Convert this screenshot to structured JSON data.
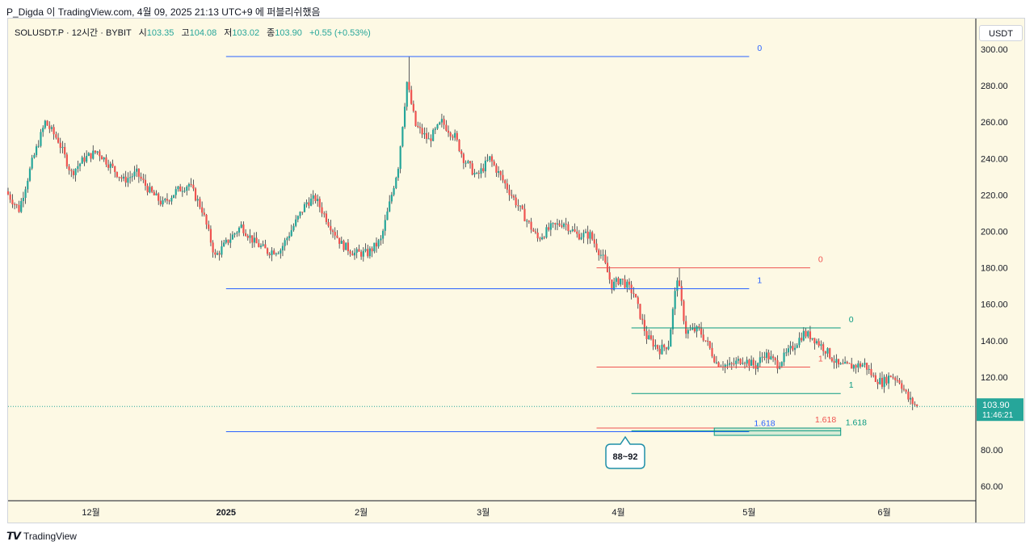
{
  "header": {
    "caption": "P_Digda 이 TradingView.com, 4월 09, 2025 21:13 UTC+9 에 퍼블리쉬했음"
  },
  "legend": {
    "symbol": "SOLUSDT.P · 12시간 · BYBIT",
    "open_label": "시",
    "open": "103.35",
    "high_label": "고",
    "high": "104.08",
    "low_label": "저",
    "low": "103.02",
    "close_label": "종",
    "close": "103.90",
    "change": "+0.55 (+0.53%)"
  },
  "currency": "USDT",
  "footer": {
    "brand": "TradingView"
  },
  "colors": {
    "up": "#26a69a",
    "down": "#ef5350",
    "fib_blue": "#2962ff",
    "fib_red": "#ef5350",
    "fib_teal": "#089981",
    "background": "#fdf9e4"
  },
  "chart_data": {
    "type": "candlestick",
    "title": "SOLUSDT.P · 12시간 · BYBIT",
    "ylim": [
      50,
      310
    ],
    "y_ticks": [
      "300.00",
      "280.00",
      "260.00",
      "240.00",
      "220.00",
      "200.00",
      "180.00",
      "160.00",
      "140.00",
      "120.00",
      "100.00",
      "80.00",
      "60.00"
    ],
    "y_tick_values": [
      300,
      280,
      260,
      240,
      220,
      200,
      180,
      160,
      140,
      120,
      100,
      80,
      60
    ],
    "x_ticks": [
      "12월",
      "2025",
      "2월",
      "3월",
      "4월",
      "5월",
      "6월"
    ],
    "x_tick_dates": [
      "2024-12-01",
      "2025-01-01",
      "2025-02-01",
      "2025-03-01",
      "2025-04-01",
      "2025-05-01",
      "2025-06-01"
    ],
    "x_range": [
      "2024-11-12",
      "2025-06-22"
    ],
    "series_anchors": [
      {
        "date": "2024-11-12",
        "close": 222
      },
      {
        "date": "2024-11-15",
        "close": 212
      },
      {
        "date": "2024-11-18",
        "close": 238
      },
      {
        "date": "2024-11-21",
        "close": 260
      },
      {
        "date": "2024-11-24",
        "close": 250
      },
      {
        "date": "2024-11-27",
        "close": 232
      },
      {
        "date": "2024-11-30",
        "close": 240
      },
      {
        "date": "2024-12-03",
        "close": 244
      },
      {
        "date": "2024-12-06",
        "close": 236
      },
      {
        "date": "2024-12-09",
        "close": 228
      },
      {
        "date": "2024-12-12",
        "close": 232
      },
      {
        "date": "2024-12-15",
        "close": 222
      },
      {
        "date": "2024-12-18",
        "close": 215
      },
      {
        "date": "2024-12-21",
        "close": 222
      },
      {
        "date": "2024-12-24",
        "close": 226
      },
      {
        "date": "2024-12-27",
        "close": 212
      },
      {
        "date": "2024-12-30",
        "close": 186
      },
      {
        "date": "2025-01-02",
        "close": 195
      },
      {
        "date": "2025-01-05",
        "close": 203
      },
      {
        "date": "2025-01-08",
        "close": 194
      },
      {
        "date": "2025-01-11",
        "close": 189
      },
      {
        "date": "2025-01-14",
        "close": 190
      },
      {
        "date": "2025-01-17",
        "close": 203
      },
      {
        "date": "2025-01-20",
        "close": 216
      },
      {
        "date": "2025-01-22",
        "close": 218
      },
      {
        "date": "2025-01-25",
        "close": 205
      },
      {
        "date": "2025-01-28",
        "close": 193
      },
      {
        "date": "2025-01-31",
        "close": 188
      },
      {
        "date": "2025-02-03",
        "close": 188
      },
      {
        "date": "2025-02-06",
        "close": 195
      },
      {
        "date": "2025-02-08",
        "close": 215
      },
      {
        "date": "2025-02-10",
        "close": 236
      },
      {
        "date": "2025-02-12",
        "close": 282
      },
      {
        "date": "2025-02-14",
        "close": 258
      },
      {
        "date": "2025-02-17",
        "close": 250
      },
      {
        "date": "2025-02-20",
        "close": 260
      },
      {
        "date": "2025-02-23",
        "close": 252
      },
      {
        "date": "2025-02-25",
        "close": 240
      },
      {
        "date": "2025-02-28",
        "close": 230
      },
      {
        "date": "2025-03-03",
        "close": 240
      },
      {
        "date": "2025-03-05",
        "close": 232
      },
      {
        "date": "2025-03-08",
        "close": 220
      },
      {
        "date": "2025-03-11",
        "close": 208
      },
      {
        "date": "2025-03-14",
        "close": 196
      },
      {
        "date": "2025-03-17",
        "close": 202
      },
      {
        "date": "2025-03-20",
        "close": 205
      },
      {
        "date": "2025-03-23",
        "close": 198
      },
      {
        "date": "2025-03-26",
        "close": 198
      },
      {
        "date": "2025-03-29",
        "close": 185
      },
      {
        "date": "2025-03-31",
        "close": 170
      },
      {
        "date": "2025-04-02",
        "close": 174
      },
      {
        "date": "2025-04-05",
        "close": 166
      },
      {
        "date": "2025-04-08",
        "close": 142
      },
      {
        "date": "2025-04-11",
        "close": 135
      },
      {
        "date": "2025-04-13",
        "close": 138
      },
      {
        "date": "2025-04-15",
        "close": 175
      },
      {
        "date": "2025-04-17",
        "close": 145
      },
      {
        "date": "2025-04-20",
        "close": 146
      },
      {
        "date": "2025-04-22",
        "close": 138
      },
      {
        "date": "2025-04-24",
        "close": 128
      },
      {
        "date": "2025-04-27",
        "close": 126
      },
      {
        "date": "2025-04-30",
        "close": 130
      },
      {
        "date": "2025-05-03",
        "close": 126
      },
      {
        "date": "2025-05-05",
        "close": 133
      },
      {
        "date": "2025-05-08",
        "close": 127
      },
      {
        "date": "2025-05-11",
        "close": 135
      },
      {
        "date": "2025-05-14",
        "close": 144
      },
      {
        "date": "2025-05-16",
        "close": 142
      },
      {
        "date": "2025-05-19",
        "close": 135
      },
      {
        "date": "2025-05-22",
        "close": 126
      },
      {
        "date": "2025-05-25",
        "close": 126
      },
      {
        "date": "2025-05-28",
        "close": 127
      },
      {
        "date": "2025-05-30",
        "close": 120
      },
      {
        "date": "2025-06-01",
        "close": 117
      },
      {
        "date": "2025-06-03",
        "close": 121
      },
      {
        "date": "2025-06-05",
        "close": 118
      },
      {
        "date": "2025-06-07",
        "close": 108
      },
      {
        "date": "2025-06-09",
        "close": 103.9
      }
    ],
    "last_price": {
      "value": 103.9,
      "label": "103.90",
      "countdown": "11:46:21"
    },
    "fib_levels": [
      {
        "set": "blue",
        "level_labels": [
          "0",
          "1",
          "1.618"
        ],
        "prices": [
          296,
          168.5,
          90
        ],
        "start": "2025-01-01",
        "end": "2025-05-01"
      },
      {
        "set": "red",
        "level_labels": [
          "0",
          "1",
          "1.618"
        ],
        "prices": [
          180,
          125.5,
          92
        ],
        "start": "2025-03-27",
        "end": "2025-05-15"
      },
      {
        "set": "teal",
        "level_labels": [
          "0",
          "1",
          "1.618"
        ],
        "prices": [
          147,
          111,
          90.5
        ],
        "start": "2025-04-04",
        "end": "2025-05-22"
      }
    ],
    "target_zone": {
      "low": 88,
      "high": 92,
      "label": "88~92"
    }
  }
}
